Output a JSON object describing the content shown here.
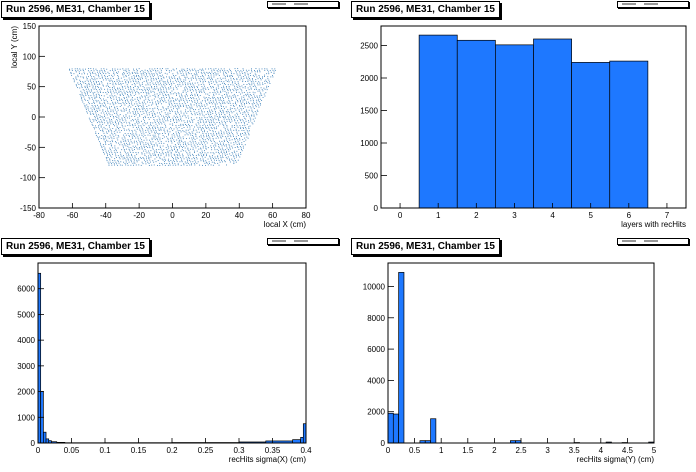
{
  "colors": {
    "fill": "#1e78ff",
    "stroke": "#000000",
    "scatter": "#3a7fb8"
  },
  "panels": [
    {
      "title": "Run 2596, ME31, Chamber 15"
    },
    {
      "title": "Run 2596, ME31, Chamber 15"
    },
    {
      "title": "Run 2596, ME31, Chamber 15"
    },
    {
      "title": "Run 2596, ME31, Chamber 15"
    }
  ],
  "chart_data": [
    {
      "type": "scatter",
      "title": "Run 2596, ME31, Chamber 15",
      "xlabel": "local X (cm)",
      "ylabel": "local Y (cm)",
      "xlim": [
        -80,
        80
      ],
      "ylim": [
        -150,
        150
      ],
      "xticks": [
        -80,
        -60,
        -40,
        -20,
        0,
        20,
        40,
        60,
        80
      ],
      "yticks": [
        -150,
        -100,
        -50,
        0,
        50,
        100,
        150
      ],
      "region": {
        "y_top": 80,
        "y_bottom": -80,
        "x_half_top": 62,
        "x_half_bottom": 38
      }
    },
    {
      "type": "bar",
      "title": "Run 2596, ME31, Chamber 15",
      "xlabel": "layers with recHits",
      "ylabel": "",
      "xlim": [
        -0.5,
        7.5
      ],
      "ylim": [
        0,
        2800
      ],
      "xticks": [
        0,
        1,
        2,
        3,
        4,
        5,
        6,
        7
      ],
      "yticks": [
        0,
        500,
        1000,
        1500,
        2000,
        2500
      ],
      "bins": [
        [
          0.5,
          1.5,
          2660
        ],
        [
          1.5,
          2.5,
          2580
        ],
        [
          2.5,
          3.5,
          2510
        ],
        [
          3.5,
          4.5,
          2600
        ],
        [
          4.5,
          5.5,
          2240
        ],
        [
          5.5,
          6.5,
          2260
        ]
      ]
    },
    {
      "type": "bar",
      "title": "Run 2596, ME31, Chamber 15",
      "xlabel": "recHits sigma(X) (cm)",
      "ylabel": "",
      "xlim": [
        0,
        0.4
      ],
      "ylim": [
        0,
        7000
      ],
      "xticks": [
        0,
        0.05,
        0.1,
        0.15,
        0.2,
        0.25,
        0.3,
        0.35,
        0.4
      ],
      "ytick_labels": [
        "0",
        "1000",
        "2000",
        "3000",
        "4000",
        "5000",
        "6000"
      ],
      "yticks": [
        0,
        1000,
        2000,
        3000,
        4000,
        5000,
        6000
      ],
      "bins": [
        [
          0.0,
          0.004,
          6600
        ],
        [
          0.004,
          0.008,
          2000
        ],
        [
          0.008,
          0.012,
          420
        ],
        [
          0.012,
          0.016,
          160
        ],
        [
          0.016,
          0.02,
          90
        ],
        [
          0.02,
          0.028,
          50
        ],
        [
          0.028,
          0.04,
          25
        ],
        [
          0.04,
          0.1,
          10
        ],
        [
          0.1,
          0.2,
          12
        ],
        [
          0.2,
          0.3,
          18
        ],
        [
          0.3,
          0.34,
          40
        ],
        [
          0.34,
          0.38,
          80
        ],
        [
          0.38,
          0.392,
          130
        ],
        [
          0.392,
          0.396,
          220
        ],
        [
          0.396,
          0.4,
          750
        ]
      ]
    },
    {
      "type": "bar",
      "title": "Run 2596, ME31, Chamber 15",
      "xlabel": "recHits sigma(Y) (cm)",
      "ylabel": "",
      "xlim": [
        0,
        5
      ],
      "ylim": [
        0,
        11500
      ],
      "xticks": [
        0,
        0.5,
        1,
        1.5,
        2,
        2.5,
        3,
        3.5,
        4,
        4.5,
        5
      ],
      "yticks": [
        0,
        2000,
        4000,
        6000,
        8000,
        10000
      ],
      "bins": [
        [
          0.0,
          0.1,
          1900
        ],
        [
          0.1,
          0.2,
          1850
        ],
        [
          0.2,
          0.3,
          10900
        ],
        [
          0.3,
          0.4,
          0
        ],
        [
          0.6,
          0.7,
          150
        ],
        [
          0.7,
          0.8,
          150
        ],
        [
          0.8,
          0.9,
          1550
        ],
        [
          2.3,
          2.4,
          150
        ],
        [
          2.4,
          2.5,
          150
        ],
        [
          3.5,
          3.6,
          30
        ],
        [
          4.1,
          4.2,
          60
        ],
        [
          4.4,
          4.5,
          30
        ],
        [
          4.9,
          5.0,
          60
        ]
      ]
    }
  ]
}
